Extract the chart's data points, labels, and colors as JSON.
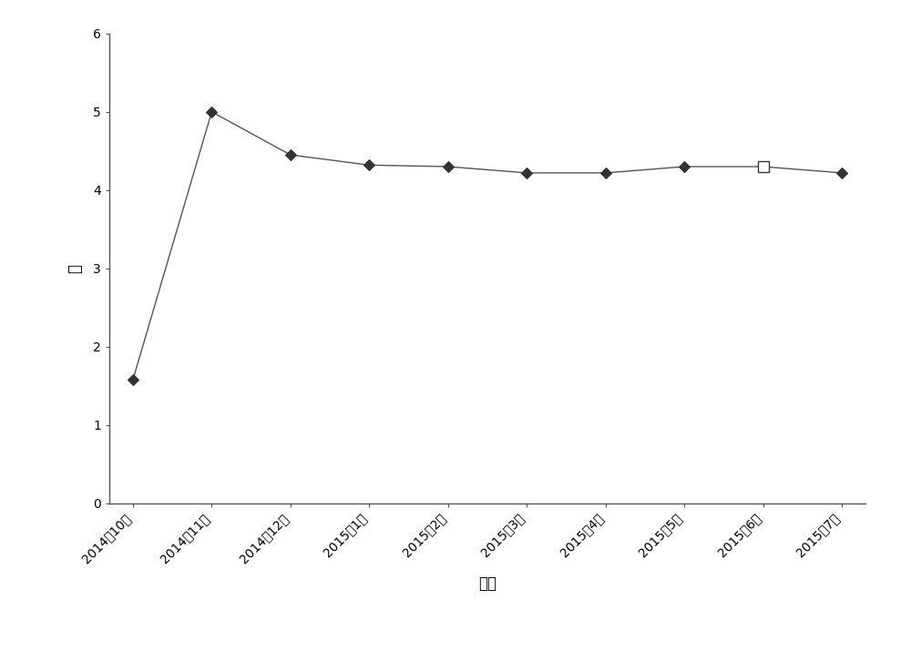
{
  "x_labels": [
    "2014年10月",
    "2014年11月",
    "2014年12月",
    "2015年1月",
    "2015年2月",
    "2015年3月",
    "2015年4月",
    "2015年5月",
    "2015年6月",
    "2015年7月"
  ],
  "y_values": [
    1.58,
    5.0,
    4.45,
    4.32,
    4.3,
    4.22,
    4.22,
    4.3,
    4.3,
    4.22
  ],
  "xlabel": "日期",
  "ylabel": "吨",
  "ylim": [
    0,
    6
  ],
  "yticks": [
    0,
    1,
    2,
    3,
    4,
    5,
    6
  ],
  "line_color": "#555555",
  "marker_color": "#333333",
  "bg_color": "#ffffff",
  "axis_fontsize": 12,
  "tick_fontsize": 10,
  "special_marker_idx": 8
}
